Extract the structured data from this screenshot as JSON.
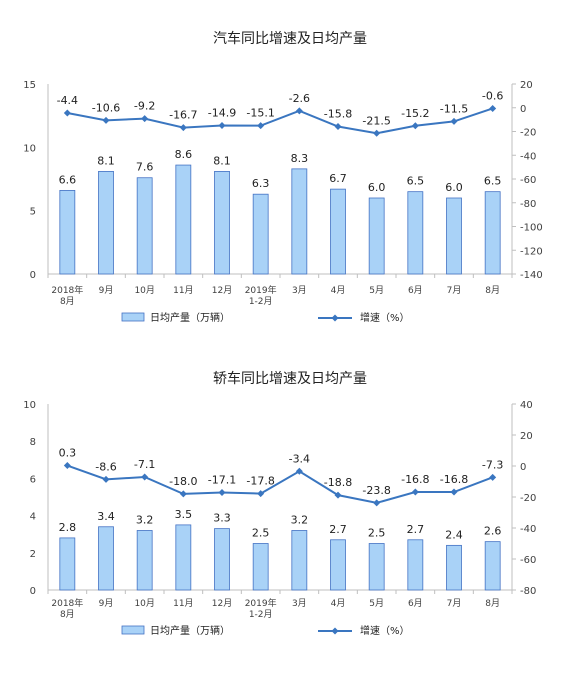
{
  "chart_data": [
    {
      "type": "bar",
      "title": "汽车同比增速及日均产量",
      "categories": [
        [
          "2018年",
          "8月"
        ],
        [
          "9月"
        ],
        [
          "10月"
        ],
        [
          "11月"
        ],
        [
          "12月"
        ],
        [
          "2019年",
          "1-2月"
        ],
        [
          "3月"
        ],
        [
          "4月"
        ],
        [
          "5月"
        ],
        [
          "6月"
        ],
        [
          "7月"
        ],
        [
          "8月"
        ]
      ],
      "series": [
        {
          "name": "日均产量（万辆）",
          "type": "bar",
          "axis": "left",
          "values": [
            6.6,
            8.1,
            7.6,
            8.6,
            8.1,
            6.3,
            8.3,
            6.7,
            6.0,
            6.5,
            6.0,
            6.5
          ],
          "labels": [
            "6.6",
            "8.1",
            "7.6",
            "8.6",
            "8.1",
            "6.3",
            "8.3",
            "6.7",
            "6.0",
            "6.5",
            "6.0",
            "6.5"
          ]
        },
        {
          "name": "增速（%）",
          "type": "line",
          "axis": "right",
          "values": [
            -4.4,
            -10.6,
            -9.2,
            -16.7,
            -14.9,
            -15.1,
            -2.6,
            -15.8,
            -21.5,
            -15.2,
            -11.5,
            -0.6
          ],
          "labels": [
            "-4.4",
            "-10.6",
            "-9.2",
            "-16.7",
            "-14.9",
            "-15.1",
            "-2.6",
            "-15.8",
            "-21.5",
            "-15.2",
            "-11.5",
            "-0.6"
          ]
        }
      ],
      "left_axis": {
        "ylim": [
          0,
          15
        ],
        "ticks": [
          "0",
          "5",
          "10",
          "15"
        ]
      },
      "right_axis": {
        "ylim": [
          -140,
          20
        ],
        "ticks": [
          "20",
          "0",
          "-20",
          "-40",
          "-60",
          "-80",
          "-100",
          "-120",
          "-140"
        ]
      },
      "legend_position": "bottom",
      "grid": false,
      "colors": {
        "bar_fill": "#a9d2f7",
        "bar_stroke": "#4472c4",
        "line": "#3a76c0"
      }
    },
    {
      "type": "bar",
      "title": "轿车同比增速及日均产量",
      "categories": [
        [
          "2018年",
          "8月"
        ],
        [
          "9月"
        ],
        [
          "10月"
        ],
        [
          "11月"
        ],
        [
          "12月"
        ],
        [
          "2019年",
          "1-2月"
        ],
        [
          "3月"
        ],
        [
          "4月"
        ],
        [
          "5月"
        ],
        [
          "6月"
        ],
        [
          "7月"
        ],
        [
          "8月"
        ]
      ],
      "series": [
        {
          "name": "日均产量（万辆）",
          "type": "bar",
          "axis": "left",
          "values": [
            2.8,
            3.4,
            3.2,
            3.5,
            3.3,
            2.5,
            3.2,
            2.7,
            2.5,
            2.7,
            2.4,
            2.6
          ],
          "labels": [
            "2.8",
            "3.4",
            "3.2",
            "3.5",
            "3.3",
            "2.5",
            "3.2",
            "2.7",
            "2.5",
            "2.7",
            "2.4",
            "2.6"
          ]
        },
        {
          "name": "增速（%）",
          "type": "line",
          "axis": "right",
          "values": [
            0.3,
            -8.6,
            -7.1,
            -18.0,
            -17.1,
            -17.8,
            -3.4,
            -18.8,
            -23.8,
            -16.8,
            -16.8,
            -7.3
          ],
          "labels": [
            "0.3",
            "-8.6",
            "-7.1",
            "-18.0",
            "-17.1",
            "-17.8",
            "-3.4",
            "-18.8",
            "-23.8",
            "-16.8",
            "-16.8",
            "-7.3"
          ]
        }
      ],
      "left_axis": {
        "ylim": [
          0,
          10
        ],
        "ticks": [
          "0",
          "2",
          "4",
          "6",
          "8",
          "10"
        ]
      },
      "right_axis": {
        "ylim": [
          -80,
          40
        ],
        "ticks": [
          "40",
          "20",
          "0",
          "-20",
          "-40",
          "-60",
          "-80"
        ]
      },
      "legend_position": "bottom",
      "grid": false,
      "colors": {
        "bar_fill": "#a9d2f7",
        "bar_stroke": "#4472c4",
        "line": "#3a76c0"
      }
    }
  ]
}
